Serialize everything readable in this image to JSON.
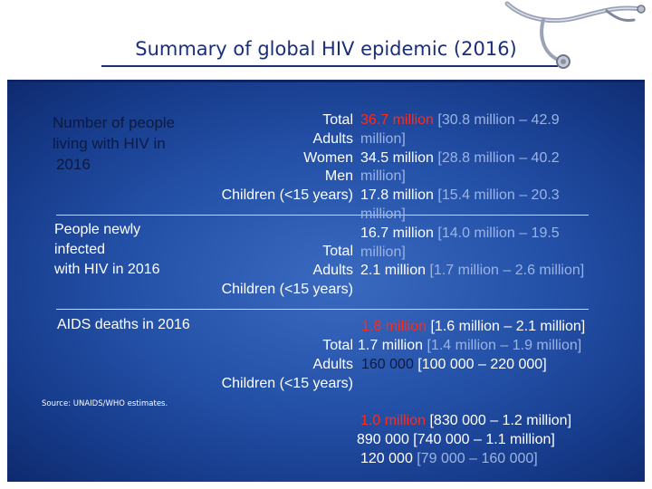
{
  "slide": {
    "title": "Summary of global HIV epidemic (2016)",
    "source": "Source: UNAIDS/WHO estimates."
  },
  "colors": {
    "title": "#1b2f78",
    "panel": "#2451a8",
    "highlight": "#ff2a1a",
    "range": "#9bb4e6"
  },
  "sections": {
    "living": {
      "heading_l1": "Number of people",
      "heading_l2": "living with HIV in",
      "heading_l3": "2016"
    },
    "new": {
      "heading_l1": "People newly",
      "heading_l2": "infected",
      "heading_l3": "with HIV in 2016"
    },
    "deaths": {
      "heading": "AIDS deaths in 2016"
    }
  },
  "labels": {
    "block1": [
      "Total",
      "Adults",
      "Women",
      "Men",
      "Children (<15 years)"
    ],
    "block2": [
      "Total",
      "Adults",
      "Children (<15 years)"
    ],
    "block3": [
      "Total",
      "Adults",
      "Children (<15 years)"
    ]
  },
  "values": {
    "block1": [
      {
        "v": "36.7 million",
        "a": " [30.8 million – 42.9"
      },
      {
        "v": "million]"
      },
      {
        "v": "34.5 million",
        "a": " [28.8 million – 40.2"
      },
      {
        "v": "million]"
      },
      {
        "v": "17.8 million",
        "a": " [15.4 million – 20.3"
      },
      {
        "v": "million]"
      },
      {
        "v": "16.7 million",
        "a": " [14.0 million – 19.5"
      },
      {
        "v": "million]"
      },
      {
        "v": "2.1 million",
        "a": " [1.7 million – 2.6 million]"
      }
    ],
    "block2": [
      {
        "v": "1.8 million",
        "a": " [1.6 million – 2.1 million]"
      },
      {
        "v": "1.7 million",
        "a": " [1.4 million – 1.9 million]"
      },
      {
        "v": "160 000",
        "a": " [100 000 – 220 000]"
      }
    ],
    "block3": [
      {
        "v": "1.0 million",
        "a": " [830 000 – 1.2 million]"
      },
      {
        "v": "890 000",
        "a": " [740 000 – 1.1 million]"
      },
      {
        "v": "120 000",
        "a": " [79 000 – 160 000]"
      }
    ]
  }
}
